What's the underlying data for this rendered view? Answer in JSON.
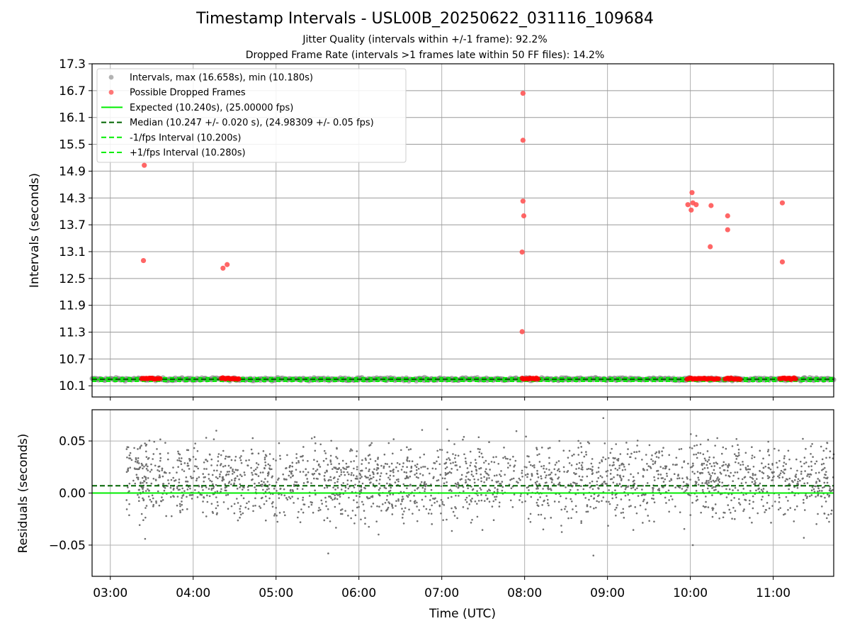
{
  "titles": {
    "main": "Timestamp Intervals - USL00B_20250622_031116_109684",
    "subtitle1": "Jitter Quality (intervals within +/-1 frame): 92.2%",
    "subtitle2": "Dropped Frame Rate (intervals >1 frames late within 50 FF files): 14.2%"
  },
  "colors": {
    "intervals": "#808080",
    "dropped": "#ff0000",
    "expected": "#00ee00",
    "median": "#006400",
    "fps_bounds": "#00ee00",
    "grid": "#b0b0b0"
  },
  "chart_data": [
    {
      "type": "scatter",
      "panel": "top",
      "ylabel": "Intervals (seconds)",
      "xlim": [
        2.78,
        11.73
      ],
      "ylim": [
        9.85,
        17.3
      ],
      "yticks": [
        "10.1",
        "10.7",
        "11.3",
        "11.9",
        "12.5",
        "13.1",
        "13.7",
        "14.3",
        "14.9",
        "15.5",
        "16.1",
        "16.7",
        "17.3"
      ],
      "ytick_values": [
        10.1,
        10.7,
        11.3,
        11.9,
        12.5,
        13.1,
        13.7,
        14.3,
        14.9,
        15.5,
        16.1,
        16.7,
        17.3
      ],
      "grid": true,
      "legend_position": "top-left",
      "legend": [
        {
          "label": "Intervals, max (16.658s), min (10.180s)",
          "kind": "dot",
          "color": "#a0a0a0"
        },
        {
          "label": "Possible Dropped Frames",
          "kind": "dot",
          "color": "#ff5555"
        },
        {
          "label": "Expected (10.240s), (25.00000 fps)",
          "kind": "solid",
          "color": "#00ee00"
        },
        {
          "label": "Median (10.247 +/- 0.020 s), (24.98309 +/- 0.05 fps)",
          "kind": "dashed",
          "color": "#006400"
        },
        {
          "label": "-1/fps Interval (10.200s)",
          "kind": "dashed",
          "color": "#00ee00"
        },
        {
          "label": "+1/fps Interval (10.280s)",
          "kind": "dashed",
          "color": "#00ee00"
        }
      ],
      "reference_lines": {
        "expected": 10.24,
        "median": 10.247,
        "minus_1fps": 10.2,
        "plus_1fps": 10.28
      },
      "intervals_x_range": [
        2.78,
        11.73
      ],
      "interval_band": [
        10.2,
        10.28
      ],
      "dropped_frames": [
        {
          "x": 3.41,
          "y": 15.03
        },
        {
          "x": 3.4,
          "y": 12.9
        },
        {
          "x": 4.36,
          "y": 12.73
        },
        {
          "x": 4.41,
          "y": 12.81
        },
        {
          "x": 7.98,
          "y": 16.64
        },
        {
          "x": 7.98,
          "y": 15.59
        },
        {
          "x": 7.98,
          "y": 14.23
        },
        {
          "x": 7.99,
          "y": 13.9
        },
        {
          "x": 7.97,
          "y": 13.09
        },
        {
          "x": 7.97,
          "y": 11.31
        },
        {
          "x": 9.97,
          "y": 14.15
        },
        {
          "x": 10.01,
          "y": 14.03
        },
        {
          "x": 10.02,
          "y": 14.42
        },
        {
          "x": 10.03,
          "y": 14.19
        },
        {
          "x": 10.07,
          "y": 14.15
        },
        {
          "x": 10.25,
          "y": 14.13
        },
        {
          "x": 10.24,
          "y": 13.21
        },
        {
          "x": 10.45,
          "y": 13.9
        },
        {
          "x": 10.45,
          "y": 13.59
        },
        {
          "x": 11.11,
          "y": 14.19
        },
        {
          "x": 11.11,
          "y": 12.87
        }
      ],
      "dropped_clusters_near_baseline": [
        {
          "x_start": 3.38,
          "x_end": 3.6,
          "y": 10.26
        },
        {
          "x_start": 4.34,
          "x_end": 4.55,
          "y": 10.26
        },
        {
          "x_start": 7.97,
          "x_end": 8.16,
          "y": 10.26
        },
        {
          "x_start": 9.96,
          "x_end": 10.34,
          "y": 10.26
        },
        {
          "x_start": 10.42,
          "x_end": 10.6,
          "y": 10.26
        },
        {
          "x_start": 11.08,
          "x_end": 11.27,
          "y": 10.26
        }
      ]
    },
    {
      "type": "scatter",
      "panel": "bottom",
      "xlabel": "Time (UTC)",
      "ylabel": "Residuals (seconds)",
      "xlim": [
        2.78,
        11.73
      ],
      "ylim": [
        -0.08,
        0.08
      ],
      "yticks": [
        "0.05",
        "0.00",
        "−0.05"
      ],
      "ytick_values": [
        0.05,
        0.0,
        -0.05
      ],
      "xticks": [
        "03:00",
        "04:00",
        "05:00",
        "06:00",
        "07:00",
        "08:00",
        "09:00",
        "10:00",
        "11:00"
      ],
      "xtick_values": [
        3,
        4,
        5,
        6,
        7,
        8,
        9,
        10,
        11
      ],
      "grid": true,
      "reference_lines": {
        "zero": 0.0,
        "median_offset": 0.007
      },
      "residual_x_range": [
        3.19,
        11.73
      ],
      "residual_typical_range": [
        -0.035,
        0.06
      ],
      "residual_extremes": [
        {
          "x": 8.95,
          "y": 0.072
        },
        {
          "x": 8.83,
          "y": -0.06
        },
        {
          "x": 10.03,
          "y": -0.05
        },
        {
          "x": 5.63,
          "y": -0.058
        },
        {
          "x": 3.42,
          "y": -0.044
        },
        {
          "x": 11.37,
          "y": -0.043
        }
      ]
    }
  ]
}
